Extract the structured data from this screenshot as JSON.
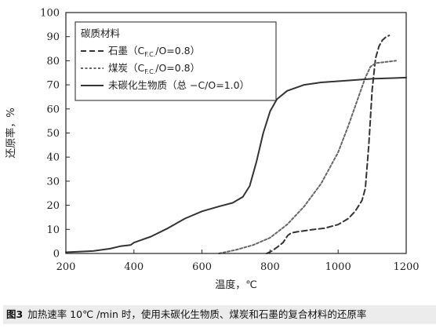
{
  "caption": {
    "figure_label": "图3",
    "text": "加热速率 10℃ /min 时，使用未碳化生物质、煤炭和石墨的复合材料的还原率"
  },
  "chart_data": {
    "type": "line",
    "xlabel": "温度，℃",
    "ylabel": "还原率，%",
    "xlim": [
      200,
      1200
    ],
    "ylim": [
      0,
      100
    ],
    "xticks": [
      200,
      400,
      600,
      800,
      1000,
      1200
    ],
    "yticks": [
      0,
      10,
      20,
      30,
      40,
      50,
      60,
      70,
      80,
      90,
      100
    ],
    "grid": false,
    "legend": {
      "placement": "top-left",
      "title": "碳质材料",
      "entries": [
        {
          "label_main": "石墨（C",
          "label_sub": "F.C.",
          "label_tail": "/O=0.8）",
          "style": "dashed-long",
          "series": 0
        },
        {
          "label_main": "煤炭（C",
          "label_sub": "F.C.",
          "label_tail": "/O=0.8）",
          "style": "dashed-short",
          "series": 1
        },
        {
          "label_main": "未碳化生物质（总 −C/O=1.0）",
          "label_sub": "",
          "label_tail": "",
          "style": "solid",
          "series": 2
        }
      ]
    },
    "series": [
      {
        "name": "石墨（CF.C./O=0.8）",
        "color": "#333333",
        "points": [
          [
            790,
            0
          ],
          [
            805,
            1
          ],
          [
            820,
            2.5
          ],
          [
            838,
            4.5
          ],
          [
            852,
            7.5
          ],
          [
            862,
            8.5
          ],
          [
            880,
            9
          ],
          [
            920,
            9.8
          ],
          [
            960,
            10.5
          ],
          [
            1000,
            12
          ],
          [
            1030,
            14.5
          ],
          [
            1050,
            17.5
          ],
          [
            1070,
            22
          ],
          [
            1080,
            27
          ],
          [
            1090,
            45
          ],
          [
            1100,
            68
          ],
          [
            1110,
            81
          ],
          [
            1120,
            86
          ],
          [
            1130,
            88.5
          ],
          [
            1140,
            89.8
          ],
          [
            1150,
            90.5
          ]
        ]
      },
      {
        "name": "煤炭（CF.C./O=0.8）",
        "color": "#666666",
        "points": [
          [
            650,
            0
          ],
          [
            700,
            1.5
          ],
          [
            750,
            3.5
          ],
          [
            800,
            6.5
          ],
          [
            850,
            12
          ],
          [
            900,
            19.5
          ],
          [
            950,
            29
          ],
          [
            1000,
            42
          ],
          [
            1030,
            53
          ],
          [
            1060,
            65
          ],
          [
            1080,
            73
          ],
          [
            1095,
            77.5
          ],
          [
            1110,
            79
          ],
          [
            1140,
            79.5
          ],
          [
            1170,
            80
          ]
        ]
      },
      {
        "name": "未碳化生物质（总 −C/O=1.0）",
        "color": "#333333",
        "points": [
          [
            200,
            0.5
          ],
          [
            280,
            1
          ],
          [
            330,
            2
          ],
          [
            360,
            3
          ],
          [
            390,
            3.5
          ],
          [
            400,
            4.5
          ],
          [
            420,
            5.5
          ],
          [
            450,
            7
          ],
          [
            500,
            10.5
          ],
          [
            550,
            14.5
          ],
          [
            600,
            17.5
          ],
          [
            650,
            19.5
          ],
          [
            690,
            21
          ],
          [
            720,
            23.5
          ],
          [
            740,
            28
          ],
          [
            760,
            38
          ],
          [
            780,
            50
          ],
          [
            800,
            59
          ],
          [
            820,
            64
          ],
          [
            850,
            67.5
          ],
          [
            900,
            70
          ],
          [
            950,
            71
          ],
          [
            1000,
            71.5
          ],
          [
            1100,
            72.5
          ],
          [
            1200,
            73
          ]
        ]
      }
    ]
  }
}
